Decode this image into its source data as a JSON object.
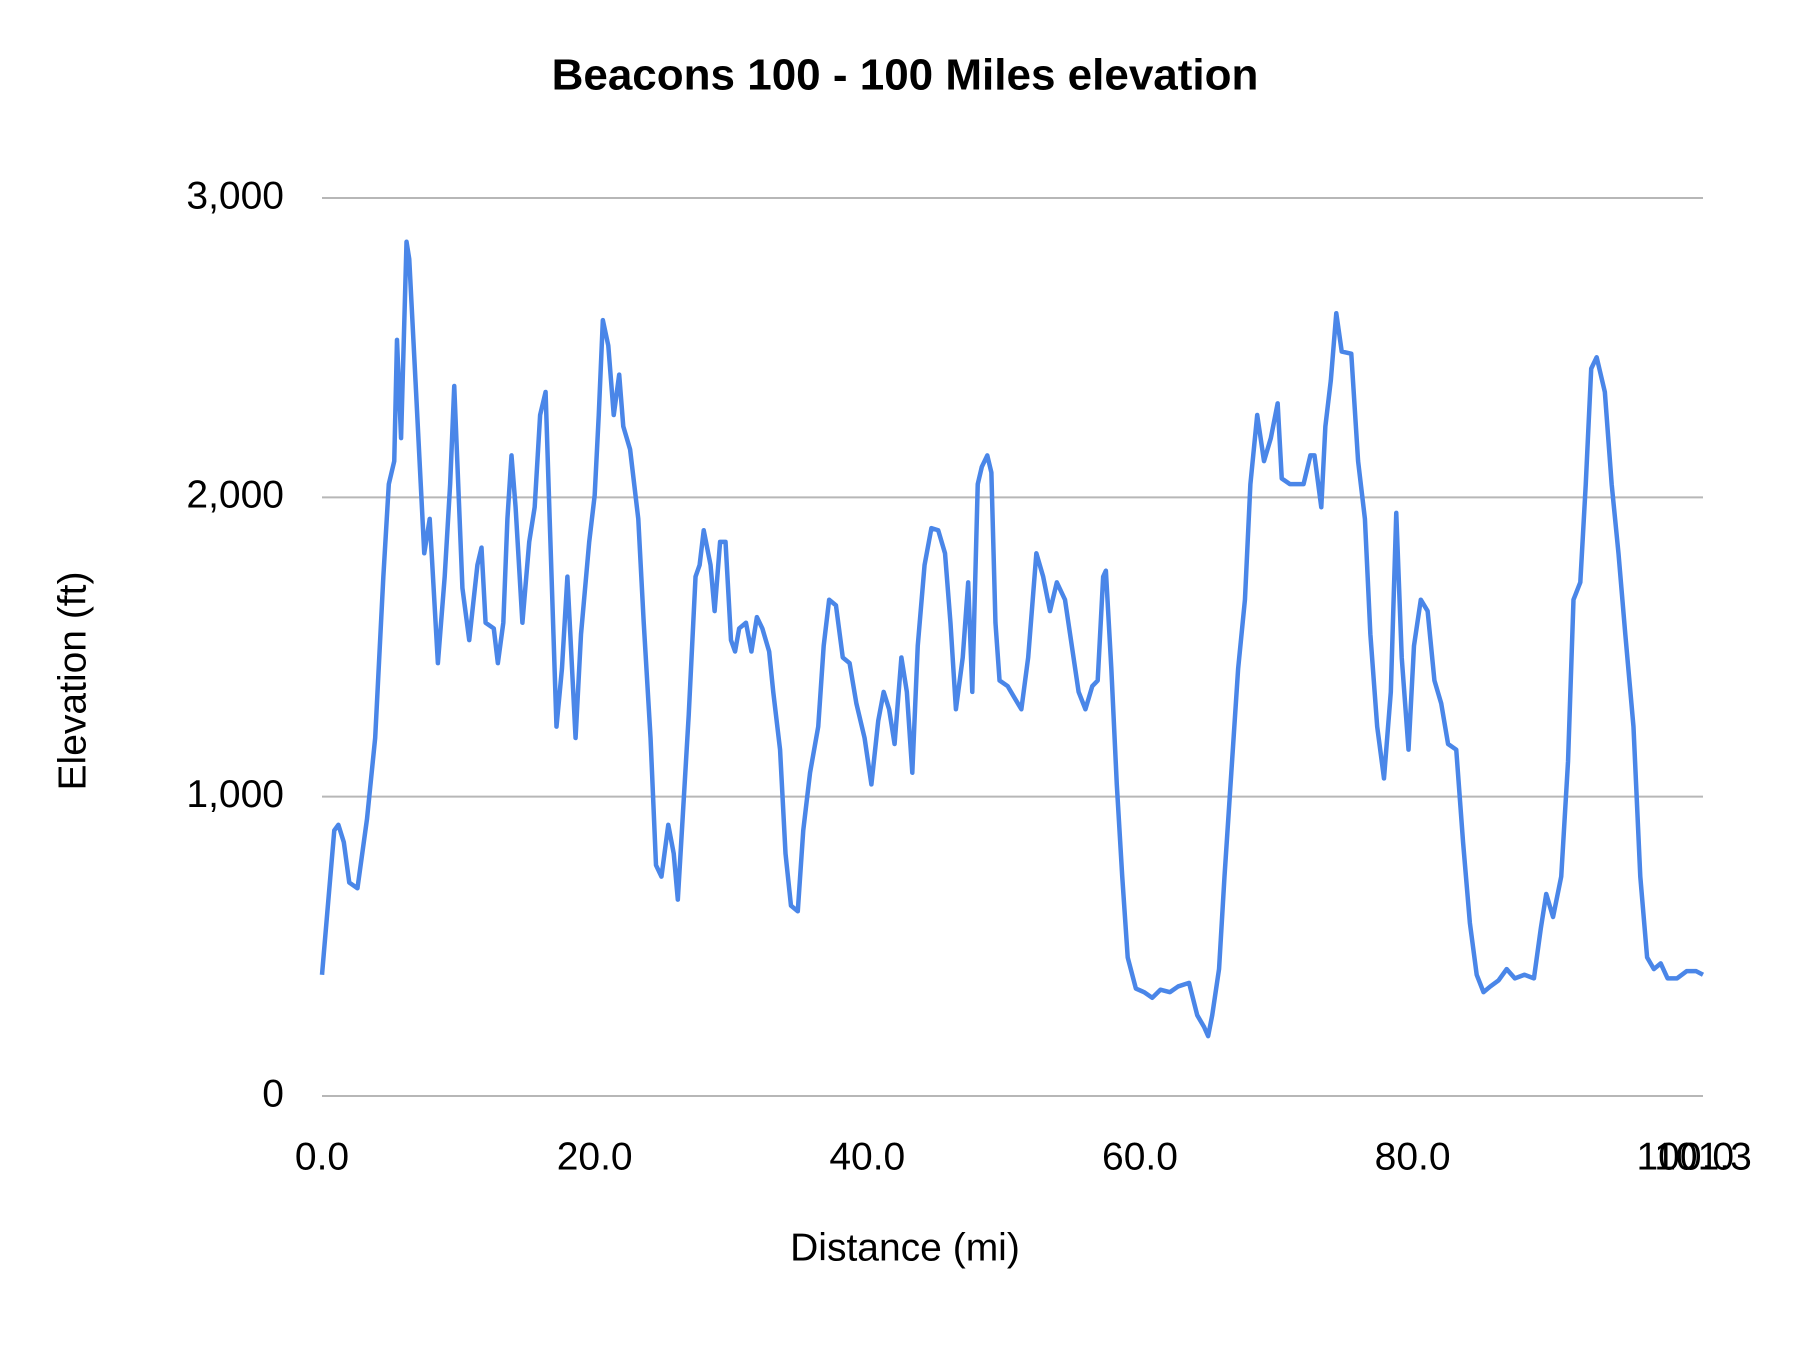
{
  "chart_data": {
    "type": "line",
    "title": "Beacons 100 - 100 Miles elevation",
    "x_label": "Distance (mi)",
    "y_label": "Elevation (ft)",
    "xlim": [
      0,
      101.3
    ],
    "xticks": [
      {
        "value": 0,
        "label": "0.0"
      },
      {
        "value": 20,
        "label": "20.0"
      },
      {
        "value": 40,
        "label": "40.0"
      },
      {
        "value": 60,
        "label": "60.0"
      },
      {
        "value": 80,
        "label": "80.0"
      },
      {
        "value": 100,
        "label": "100.0"
      },
      {
        "value": 101.3,
        "label": "101.3"
      }
    ],
    "ylim": [
      0,
      3000
    ],
    "yticks": [
      0,
      {
        "value": 1000,
        "label": "1,000"
      },
      {
        "value": 2000,
        "label": "2,000"
      },
      {
        "value": 3000,
        "label": "3,000"
      }
    ],
    "grid": true,
    "x": [
      0,
      0.9,
      1.2,
      1.6,
      2.0,
      2.6,
      3.3,
      3.9,
      4.5,
      4.9,
      5.3,
      5.5,
      5.8,
      6.2,
      6.4,
      6.9,
      7.5,
      7.9,
      8.5,
      9.0,
      9.4,
      9.7,
      10.3,
      10.8,
      11.4,
      11.7,
      12.0,
      12.6,
      12.9,
      13.3,
      13.6,
      13.9,
      14.2,
      14.7,
      15.2,
      15.6,
      16.0,
      16.4,
      16.7,
      17.2,
      17.6,
      18.0,
      18.6,
      19.0,
      19.6,
      20.0,
      20.3,
      20.6,
      21.0,
      21.4,
      21.8,
      22.1,
      22.6,
      23.2,
      23.6,
      24.1,
      24.5,
      24.9,
      25.4,
      25.8,
      26.1,
      26.5,
      26.9,
      27.4,
      27.7,
      28.0,
      28.5,
      28.8,
      29.2,
      29.6,
      30.0,
      30.3,
      30.6,
      31.1,
      31.5,
      31.9,
      32.3,
      32.8,
      33.1,
      33.6,
      34.0,
      34.4,
      34.9,
      35.3,
      35.8,
      36.4,
      36.8,
      37.2,
      37.7,
      38.2,
      38.7,
      39.2,
      39.8,
      40.3,
      40.8,
      41.2,
      41.6,
      42.0,
      42.5,
      42.9,
      43.3,
      43.7,
      44.2,
      44.7,
      45.2,
      45.7,
      46.1,
      46.5,
      47.0,
      47.4,
      47.7,
      48.1,
      48.4,
      48.8,
      49.1,
      49.4,
      49.7,
      50.3,
      50.8,
      51.3,
      51.8,
      52.4,
      52.9,
      53.4,
      53.9,
      54.5,
      55.0,
      55.5,
      56.0,
      56.5,
      56.9,
      57.3,
      57.5,
      57.9,
      58.3,
      58.7,
      59.1,
      59.7,
      60.3,
      60.9,
      61.5,
      62.2,
      62.8,
      63.6,
      64.2,
      64.7,
      65.0,
      65.3,
      65.8,
      66.2,
      66.7,
      67.2,
      67.7,
      68.1,
      68.6,
      69.1,
      69.6,
      70.1,
      70.4,
      71.0,
      71.5,
      72.0,
      72.5,
      72.8,
      73.3,
      73.6,
      74.0,
      74.4,
      74.8,
      75.5,
      76.0,
      76.5,
      76.9,
      77.4,
      77.9,
      78.4,
      78.8,
      79.2,
      79.7,
      80.1,
      80.6,
      81.1,
      81.6,
      82.1,
      82.6,
      83.2,
      83.7,
      84.2,
      84.7,
      85.2,
      85.7,
      86.3,
      86.9,
      87.5,
      88.2,
      88.9,
      89.4,
      89.8,
      90.3,
      90.9,
      91.4,
      91.8,
      92.3,
      92.7,
      93.1,
      93.5,
      94.1,
      94.6,
      95.1,
      95.6,
      96.2,
      96.7,
      97.2,
      97.7,
      98.2,
      98.7,
      99.4,
      100.1,
      100.8,
      101.3
    ],
    "series": [
      {
        "name": "Elevation",
        "color": "#4a86e8",
        "values": [
          405,
          887,
          906,
          848,
          713,
          694,
          925,
          1196,
          1735,
          2044,
          2121,
          2526,
          2198,
          2854,
          2796,
          2352,
          1813,
          1928,
          1446,
          1735,
          2044,
          2372,
          1697,
          1523,
          1774,
          1832,
          1581,
          1562,
          1446,
          1581,
          1928,
          2140,
          1967,
          1581,
          1851,
          1967,
          2275,
          2352,
          1928,
          1234,
          1427,
          1735,
          1196,
          1543,
          1851,
          2006,
          2275,
          2592,
          2507,
          2275,
          2410,
          2237,
          2160,
          1928,
          1581,
          1196,
          771,
          733,
          906,
          810,
          656,
          964,
          1273,
          1735,
          1774,
          1890,
          1774,
          1620,
          1851,
          1851,
          1523,
          1485,
          1562,
          1581,
          1485,
          1600,
          1562,
          1485,
          1350,
          1157,
          810,
          636,
          617,
          887,
          1080,
          1234,
          1504,
          1658,
          1639,
          1465,
          1446,
          1311,
          1196,
          1041,
          1253,
          1350,
          1292,
          1176,
          1465,
          1350,
          1080,
          1504,
          1774,
          1897,
          1890,
          1813,
          1581,
          1292,
          1465,
          1716,
          1350,
          2044,
          2102,
          2140,
          2083,
          1581,
          1388,
          1369,
          1330,
          1292,
          1465,
          1813,
          1735,
          1620,
          1716,
          1658,
          1504,
          1350,
          1292,
          1369,
          1388,
          1735,
          1755,
          1427,
          1041,
          733,
          463,
          359,
          347,
          328,
          355,
          347,
          366,
          378,
          270,
          231,
          200,
          270,
          424,
          733,
          1080,
          1427,
          1658,
          2044,
          2275,
          2121,
          2198,
          2314,
          2063,
          2044,
          2044,
          2044,
          2140,
          2140,
          1967,
          2237,
          2391,
          2615,
          2487,
          2480,
          2121,
          1928,
          1543,
          1234,
          1061,
          1350,
          1948,
          1465,
          1157,
          1504,
          1658,
          1620,
          1388,
          1311,
          1176,
          1157,
          848,
          578,
          405,
          347,
          366,
          386,
          424,
          393,
          405,
          393,
          559,
          675,
          598,
          733,
          1118,
          1658,
          1716,
          2044,
          2430,
          2468,
          2352,
          2044,
          1813,
          1543,
          1234,
          733,
          463,
          424,
          443,
          393,
          393,
          417,
          417,
          405
        ]
      }
    ]
  }
}
